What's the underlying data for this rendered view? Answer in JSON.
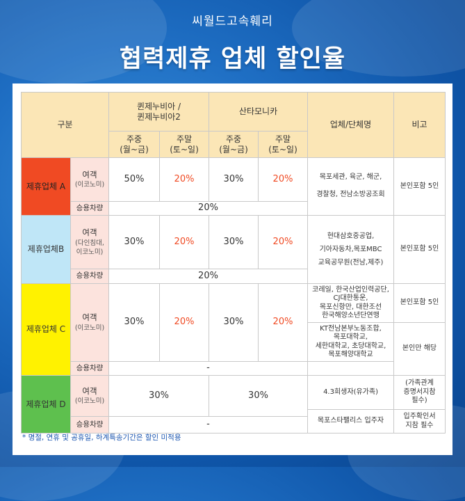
{
  "company": "씨월드고속훼리",
  "title": "협력제휴 업체 할인율",
  "table": {
    "head": {
      "division": "구분",
      "queen_line1": "퀸제누비아 /",
      "queen_line2": "퀸제누비아2",
      "santa": "산타모니카",
      "company_col": "업체/단체명",
      "note_col": "비고",
      "weekday_1": "주중",
      "weekday_2": "(월~금)",
      "weekend_1": "주말",
      "weekend_2": "(토~일)"
    },
    "labels": {
      "passenger": "여객",
      "economy": "(이코노미)",
      "vehicle": "승용차량"
    },
    "groupA": {
      "name": "제휴업체 A",
      "queen_weekday": "50%",
      "queen_weekend": "20%",
      "santa_weekday": "30%",
      "santa_weekend": "20%",
      "orgs_1": "목포세관, 육군, 해군,",
      "orgs_2": "경찰청, 전남소방공조회",
      "note": "본인포함 5인",
      "vehicle_rate": "20%"
    },
    "groupB": {
      "name": "제휴업체B",
      "sub_1": "(다인침대,",
      "sub_2": "이코노미)",
      "queen_weekday": "30%",
      "queen_weekend": "20%",
      "santa_weekday": "30%",
      "santa_weekend": "20%",
      "orgs_1": "현대삼호중공업,",
      "orgs_2": "기아자동차,목포MBC",
      "orgs_3": "교육공무원(전남,제주)",
      "note": "본인포함 5인",
      "vehicle_rate": "20%"
    },
    "groupC": {
      "name": "제휴업체 C",
      "queen_weekday": "30%",
      "queen_weekend": "20%",
      "santa_weekday": "30%",
      "santa_weekend": "20%",
      "orgs1_1": "코레일, 한국산업인력공단,",
      "orgs1_2": "CJ대한통운,",
      "orgs1_3": "목포신항만, 대한조선",
      "orgs1_4": "한국해양소년단연맹",
      "note1": "본인포함 5인",
      "orgs2_1": "KT전남본부노동조합,",
      "orgs2_2": "목포대학교,",
      "orgs2_3": "세한대학교, 초당대학교,",
      "orgs2_4": "목포해양대학교",
      "note2": "본인만 해당",
      "vehicle_rate": "-"
    },
    "groupD": {
      "name": "제휴업체 D",
      "queen_rate": "30%",
      "santa_rate": "30%",
      "orgs1": "4.3희생자(유가족)",
      "note1_1": "(가족관계",
      "note1_2": "증명서지참",
      "note1_3": "필수)",
      "orgs2": "목포스타팰리스 입주자",
      "note2_1": "입주확인서",
      "note2_2": "지참 필수",
      "vehicle_rate": "-"
    }
  },
  "footnote": "* 명절, 연휴 및 공휴일, 하계특송기간은 할인 미적용"
}
